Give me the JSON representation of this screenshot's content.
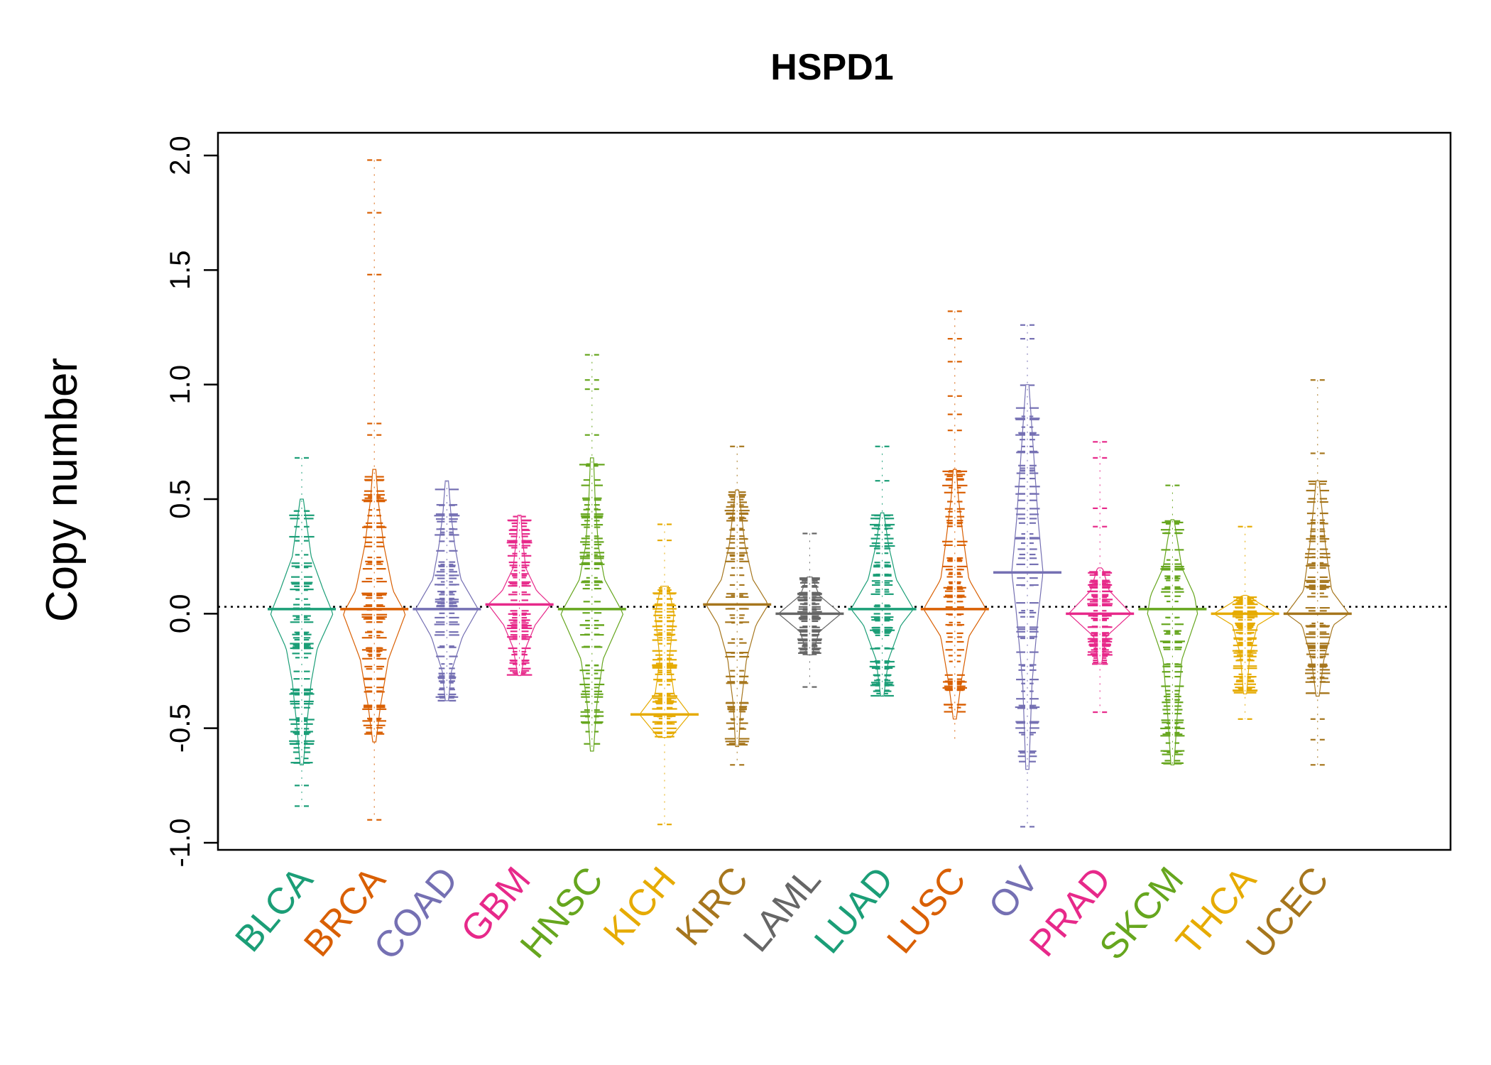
{
  "chart_data": {
    "type": "beanplot",
    "title": "HSPD1",
    "xlabel": "",
    "ylabel": "Copy number",
    "ylim": [
      -1.0,
      2.0
    ],
    "yticks": [
      "-1.0",
      "-0.5",
      "0.0",
      "0.5",
      "1.0",
      "1.5",
      "2.0"
    ],
    "reference_line": 0.03,
    "categories": [
      "BLCA",
      "BRCA",
      "COAD",
      "GBM",
      "HNSC",
      "KICH",
      "KIRC",
      "LAML",
      "LUAD",
      "LUSC",
      "OV",
      "PRAD",
      "SKCM",
      "THCA",
      "UCEC"
    ],
    "colors": [
      "#1b9e77",
      "#d95f02",
      "#7570b3",
      "#e7298a",
      "#66a61e",
      "#e6ab02",
      "#a6761d",
      "#666666",
      "#1b9e77",
      "#d95f02",
      "#7570b3",
      "#e7298a",
      "#66a61e",
      "#e6ab02",
      "#a6761d"
    ],
    "series": [
      {
        "category": "BLCA",
        "min": -0.84,
        "max": 0.68,
        "center": 0.02,
        "outliers": [
          0.68,
          -0.75,
          -0.84
        ],
        "density": [
          [
            -0.66,
            0.05
          ],
          [
            -0.5,
            0.15
          ],
          [
            -0.3,
            0.3
          ],
          [
            -0.15,
            0.5
          ],
          [
            0.0,
            1.0
          ],
          [
            0.1,
            0.7
          ],
          [
            0.25,
            0.3
          ],
          [
            0.5,
            0.05
          ]
        ]
      },
      {
        "category": "BRCA",
        "min": -0.9,
        "max": 1.98,
        "center": 0.02,
        "outliers": [
          1.98,
          1.75,
          1.48,
          0.83,
          0.78,
          -0.9
        ],
        "density": [
          [
            -0.56,
            0.05
          ],
          [
            -0.4,
            0.2
          ],
          [
            -0.2,
            0.45
          ],
          [
            0.0,
            1.0
          ],
          [
            0.1,
            0.6
          ],
          [
            0.3,
            0.3
          ],
          [
            0.5,
            0.12
          ],
          [
            0.63,
            0.05
          ]
        ]
      },
      {
        "category": "COAD",
        "min": -0.38,
        "max": 0.58,
        "center": 0.02,
        "outliers": [],
        "density": [
          [
            -0.38,
            0.05
          ],
          [
            -0.25,
            0.15
          ],
          [
            -0.1,
            0.5
          ],
          [
            0.02,
            1.0
          ],
          [
            0.15,
            0.45
          ],
          [
            0.3,
            0.25
          ],
          [
            0.45,
            0.12
          ],
          [
            0.58,
            0.05
          ]
        ]
      },
      {
        "category": "GBM",
        "min": -0.27,
        "max": 0.43,
        "center": 0.04,
        "outliers": [],
        "density": [
          [
            -0.27,
            0.05
          ],
          [
            -0.15,
            0.2
          ],
          [
            -0.05,
            0.5
          ],
          [
            0.04,
            1.0
          ],
          [
            0.1,
            0.55
          ],
          [
            0.2,
            0.2
          ],
          [
            0.35,
            0.08
          ],
          [
            0.43,
            0.05
          ]
        ]
      },
      {
        "category": "HNSC",
        "min": -0.6,
        "max": 1.13,
        "center": 0.02,
        "outliers": [
          1.13,
          1.02,
          0.98,
          0.78
        ],
        "density": [
          [
            -0.6,
            0.05
          ],
          [
            -0.4,
            0.15
          ],
          [
            -0.2,
            0.35
          ],
          [
            0.0,
            1.0
          ],
          [
            0.15,
            0.4
          ],
          [
            0.3,
            0.2
          ],
          [
            0.5,
            0.1
          ],
          [
            0.68,
            0.05
          ]
        ]
      },
      {
        "category": "KICH",
        "min": -0.92,
        "max": 0.39,
        "center": -0.44,
        "outliers": [
          -0.92,
          0.39,
          0.32
        ],
        "density": [
          [
            -0.54,
            0.2
          ],
          [
            -0.44,
            0.8
          ],
          [
            -0.35,
            0.3
          ],
          [
            -0.2,
            0.15
          ],
          [
            0.0,
            0.3
          ],
          [
            0.12,
            0.12
          ]
        ]
      },
      {
        "category": "KIRC",
        "min": -0.66,
        "max": 0.73,
        "center": 0.04,
        "outliers": [
          0.73,
          -0.66
        ],
        "density": [
          [
            -0.58,
            0.05
          ],
          [
            -0.4,
            0.12
          ],
          [
            -0.2,
            0.3
          ],
          [
            -0.05,
            0.6
          ],
          [
            0.04,
            1.0
          ],
          [
            0.15,
            0.5
          ],
          [
            0.3,
            0.25
          ],
          [
            0.54,
            0.05
          ]
        ]
      },
      {
        "category": "LAML",
        "min": -0.32,
        "max": 0.35,
        "center": 0.0,
        "outliers": [
          0.35,
          -0.32
        ],
        "density": [
          [
            -0.18,
            0.08
          ],
          [
            -0.08,
            0.3
          ],
          [
            0.0,
            1.0
          ],
          [
            0.08,
            0.3
          ],
          [
            0.16,
            0.08
          ]
        ]
      },
      {
        "category": "LUAD",
        "min": -0.36,
        "max": 0.73,
        "center": 0.02,
        "outliers": [
          0.73,
          0.58
        ],
        "density": [
          [
            -0.36,
            0.05
          ],
          [
            -0.2,
            0.2
          ],
          [
            -0.05,
            0.6
          ],
          [
            0.02,
            1.0
          ],
          [
            0.15,
            0.45
          ],
          [
            0.3,
            0.2
          ],
          [
            0.44,
            0.05
          ]
        ]
      },
      {
        "category": "LUSC",
        "min": -0.56,
        "max": 1.32,
        "center": 0.02,
        "outliers": [
          1.32,
          1.2,
          1.1,
          0.95,
          0.87,
          0.8
        ],
        "density": [
          [
            -0.46,
            0.05
          ],
          [
            -0.3,
            0.2
          ],
          [
            -0.1,
            0.45
          ],
          [
            0.02,
            1.0
          ],
          [
            0.15,
            0.45
          ],
          [
            0.3,
            0.3
          ],
          [
            0.5,
            0.12
          ],
          [
            0.63,
            0.05
          ]
        ]
      },
      {
        "category": "OV",
        "min": -0.93,
        "max": 1.26,
        "center": 0.18,
        "outliers": [
          1.26,
          1.2,
          -0.93
        ],
        "density": [
          [
            -0.68,
            0.05
          ],
          [
            -0.3,
            0.15
          ],
          [
            0.0,
            0.35
          ],
          [
            0.18,
            0.5
          ],
          [
            0.4,
            0.35
          ],
          [
            0.7,
            0.2
          ],
          [
            1.0,
            0.05
          ]
        ]
      },
      {
        "category": "PRAD",
        "min": -0.43,
        "max": 0.75,
        "center": 0.0,
        "outliers": [
          0.75,
          0.68,
          0.46,
          0.38,
          -0.43
        ],
        "density": [
          [
            -0.22,
            0.05
          ],
          [
            -0.1,
            0.2
          ],
          [
            0.0,
            1.0
          ],
          [
            0.1,
            0.3
          ],
          [
            0.2,
            0.08
          ]
        ]
      },
      {
        "category": "SKCM",
        "min": -0.66,
        "max": 0.56,
        "center": 0.02,
        "outliers": [
          0.56
        ],
        "density": [
          [
            -0.66,
            0.05
          ],
          [
            -0.45,
            0.15
          ],
          [
            -0.2,
            0.3
          ],
          [
            0.0,
            0.8
          ],
          [
            0.08,
            0.7
          ],
          [
            0.2,
            0.3
          ],
          [
            0.41,
            0.05
          ]
        ]
      },
      {
        "category": "THCA",
        "min": -0.46,
        "max": 0.38,
        "center": 0.0,
        "outliers": [
          0.38,
          -0.46
        ],
        "density": [
          [
            -0.35,
            0.05
          ],
          [
            -0.18,
            0.15
          ],
          [
            -0.05,
            0.4
          ],
          [
            0.0,
            1.0
          ],
          [
            0.05,
            0.4
          ],
          [
            0.08,
            0.1
          ]
        ]
      },
      {
        "category": "UCEC",
        "min": -0.66,
        "max": 1.02,
        "center": 0.0,
        "outliers": [
          1.02,
          0.7,
          -0.46,
          -0.55,
          -0.66
        ],
        "density": [
          [
            -0.36,
            0.05
          ],
          [
            -0.2,
            0.2
          ],
          [
            -0.05,
            0.5
          ],
          [
            0.0,
            1.0
          ],
          [
            0.1,
            0.45
          ],
          [
            0.3,
            0.25
          ],
          [
            0.48,
            0.12
          ],
          [
            0.58,
            0.05
          ]
        ]
      }
    ]
  }
}
